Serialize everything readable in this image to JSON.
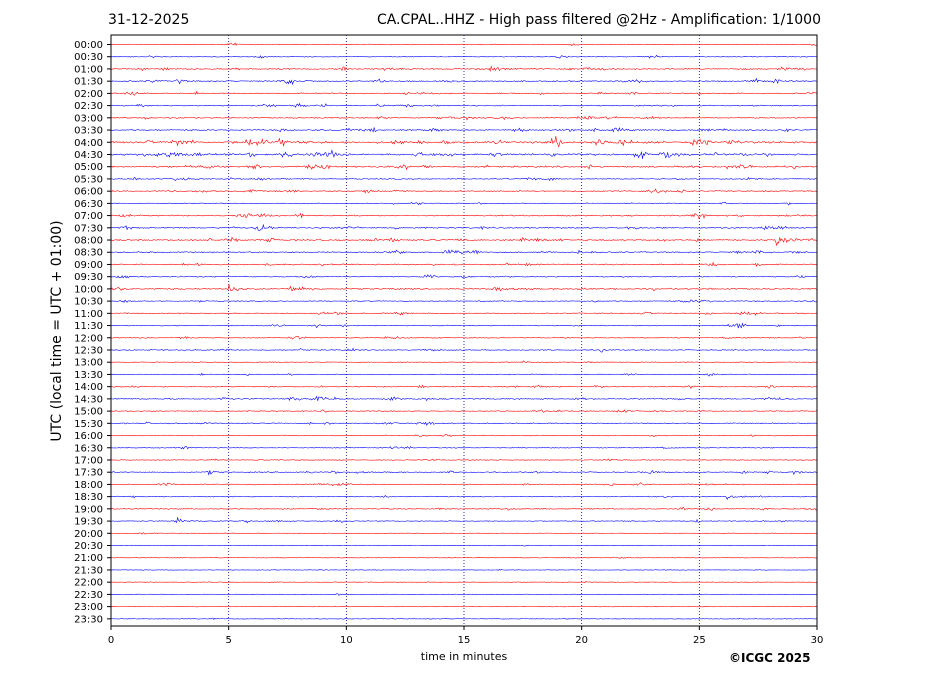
{
  "header": {
    "date": "31-12-2025",
    "title": "CA.CPAL..HHZ - High pass filtered @2Hz - Amplification: 1/1000"
  },
  "footer": {
    "copyright": "©ICGC 2025"
  },
  "colors": {
    "even_trace": "#ff0000",
    "odd_trace": "#0000ff",
    "grid": "#00008b",
    "axis": "#000000"
  },
  "chart_data": {
    "type": "line",
    "subtype": "helicorder",
    "xlabel": "time in minutes",
    "ylabel": "UTC (local time = UTC + 01:00)",
    "xlim": [
      0,
      30
    ],
    "xticks": [
      0,
      5,
      10,
      15,
      20,
      25,
      30
    ],
    "grid": "vertical dotted at 5-minute ticks",
    "row_labels": [
      "00:00",
      "00:30",
      "01:00",
      "01:30",
      "02:00",
      "02:30",
      "03:00",
      "03:30",
      "04:00",
      "04:30",
      "05:00",
      "05:30",
      "06:00",
      "06:30",
      "07:00",
      "07:30",
      "08:00",
      "08:30",
      "09:00",
      "09:30",
      "10:00",
      "10:30",
      "11:00",
      "11:30",
      "12:00",
      "12:30",
      "13:00",
      "13:30",
      "14:00",
      "14:30",
      "15:00",
      "15:30",
      "16:00",
      "16:30",
      "17:00",
      "17:30",
      "18:00",
      "18:30",
      "19:00",
      "19:30",
      "20:00",
      "20:30",
      "21:00",
      "21:30",
      "22:00",
      "22:30",
      "23:00",
      "23:30"
    ],
    "row_activity": [
      0.1,
      0.15,
      0.45,
      0.45,
      0.4,
      0.35,
      0.35,
      0.5,
      0.9,
      0.8,
      0.6,
      0.3,
      0.4,
      0.2,
      0.45,
      0.5,
      0.6,
      0.45,
      0.4,
      0.3,
      0.45,
      0.25,
      0.3,
      0.25,
      0.25,
      0.25,
      0.15,
      0.2,
      0.3,
      0.4,
      0.25,
      0.3,
      0.2,
      0.15,
      0.15,
      0.35,
      0.3,
      0.2,
      0.25,
      0.2,
      0.05,
      0.05,
      0.05,
      0.05,
      0.05,
      0.05,
      0.05,
      0.05
    ],
    "events": [
      {
        "row": "01:00",
        "minute": 16.2,
        "amplitude": 0.5
      },
      {
        "row": "03:00",
        "minute": 19.8,
        "amplitude": 0.35
      },
      {
        "row": "04:00",
        "minute": 5.8,
        "amplitude": 1.0
      },
      {
        "row": "04:00",
        "minute": 20.6,
        "amplitude": 0.7
      },
      {
        "row": "04:30",
        "minute": 2.4,
        "amplitude": 0.6
      },
      {
        "row": "04:30",
        "minute": 23.5,
        "amplitude": 0.8
      },
      {
        "row": "05:30",
        "minute": 2.6,
        "amplitude": 0.4
      },
      {
        "row": "08:00",
        "minute": 28.3,
        "amplitude": 1.1
      },
      {
        "row": "10:00",
        "minute": 5.0,
        "amplitude": 0.45
      },
      {
        "row": "10:00",
        "minute": 16.3,
        "amplitude": 0.5
      },
      {
        "row": "14:30",
        "minute": 4.7,
        "amplitude": 0.35
      },
      {
        "row": "15:30",
        "minute": 13.3,
        "amplitude": 0.35
      },
      {
        "row": "17:30",
        "minute": 4.1,
        "amplitude": 0.35
      },
      {
        "row": "18:30",
        "minute": 26.1,
        "amplitude": 0.35
      },
      {
        "row": "19:30",
        "minute": 2.8,
        "amplitude": 0.6
      }
    ]
  }
}
